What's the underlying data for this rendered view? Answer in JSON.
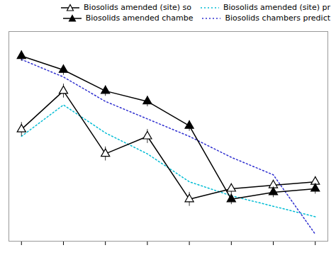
{
  "chart_data": {
    "type": "line",
    "x": [
      0,
      1,
      2,
      3,
      4,
      5,
      6,
      7
    ],
    "series": [
      {
        "name": "Biosolids amended (site) so",
        "color": "#000000",
        "marker": "triangle_open",
        "line_style": "solid",
        "values": [
          5.2,
          6.3,
          4.5,
          5.0,
          3.2,
          3.5,
          3.6,
          3.7
        ],
        "errors": [
          0.2,
          0.2,
          0.2,
          0.2,
          0.2,
          0.15,
          0.15,
          0.15
        ]
      },
      {
        "name": "Biosolids amended (site) pr",
        "color": "#00bcd4",
        "marker": "none",
        "line_style": "dotted",
        "values": [
          5.0,
          5.9,
          5.1,
          4.5,
          3.7,
          3.3,
          3.0,
          2.7
        ]
      },
      {
        "name": "Biosolids amended chambe",
        "color": "#000000",
        "marker": "triangle",
        "line_style": "solid",
        "values": [
          7.3,
          6.9,
          6.3,
          6.0,
          5.3,
          3.2,
          3.4,
          3.5
        ],
        "errors": [
          0.15,
          0.15,
          0.15,
          0.15,
          0.15,
          0.15,
          0.15,
          0.15
        ]
      },
      {
        "name": "Biosolids chambers predict",
        "color": "#3030d0",
        "marker": "none",
        "line_style": "dotted",
        "values": [
          7.2,
          6.7,
          6.0,
          5.5,
          5.0,
          4.4,
          3.9,
          2.2
        ]
      }
    ],
    "xlim": [
      -0.3,
      7.3
    ],
    "xticks": [
      0,
      1,
      2,
      3,
      4,
      5,
      6,
      7
    ],
    "ylim": [
      2.0,
      8.0
    ],
    "tick_labels": false,
    "grid": false,
    "legend": "upper right"
  }
}
